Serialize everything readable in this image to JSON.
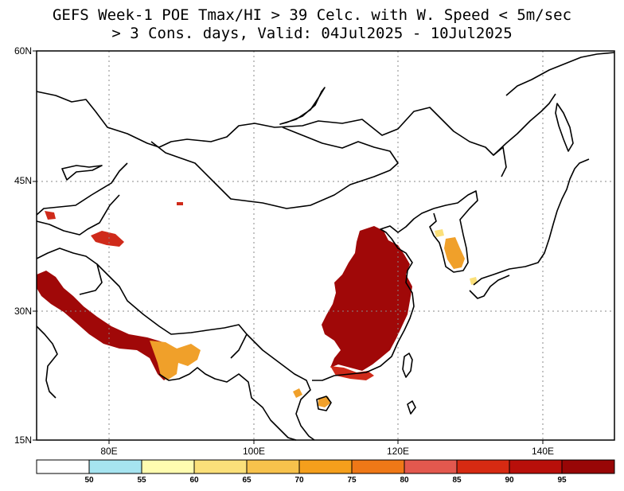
{
  "title": {
    "line1": "GEFS Week-1 POE Tmax/HI > 39 Celc. with W. Speed < 5m/sec",
    "line2": "> 3 Cons. days, Valid: 04Jul2025 - 10Jul2025"
  },
  "axes": {
    "lat_labels": [
      "60N",
      "45N",
      "30N",
      "15N"
    ],
    "lon_labels": [
      "80E",
      "100E",
      "120E",
      "140E"
    ]
  },
  "colorbar": {
    "colors": [
      "#ffffff",
      "#a6e4f0",
      "#fffcb0",
      "#fbe07a",
      "#f7c24c",
      "#f59f1c",
      "#ef7817",
      "#e3584e",
      "#d62a12",
      "#b80f0a",
      "#980606"
    ],
    "labels": [
      "50",
      "55",
      "60",
      "65",
      "70",
      "75",
      "80",
      "85",
      "90",
      "95"
    ]
  },
  "map_style": {
    "outline_color": "#000000",
    "grid_color": "#888888",
    "fill_dark": "#a00808",
    "fill_mid": "#cf2a1a",
    "fill_light": "#f0a02a",
    "fill_pale": "#fbe07a"
  }
}
